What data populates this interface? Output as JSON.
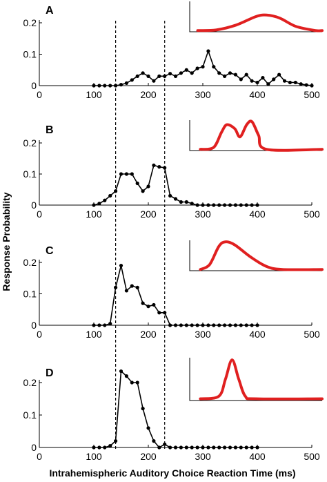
{
  "figure": {
    "ylabel": "Response Probability",
    "xlabel": "Intrahemispheric Auditory Choice Reaction Time (ms)",
    "guide_lines_x": [
      140,
      230
    ]
  },
  "colors": {
    "data": "#000000",
    "inset_curve": "#e02020",
    "axis": "#000000"
  },
  "chart_data": [
    {
      "type": "line",
      "panel": "A",
      "xlim": [
        0,
        500
      ],
      "ylim": [
        0,
        0.2
      ],
      "x_ticks": [
        "0",
        "100",
        "200",
        "300",
        "400",
        "500"
      ],
      "y_ticks": [
        "0",
        "0.1",
        "0.2"
      ],
      "series": [
        {
          "x": [
            100,
            110,
            120,
            130,
            140,
            150,
            160,
            170,
            180,
            190,
            200,
            210,
            220,
            230,
            240,
            250,
            260,
            270,
            280,
            290,
            300,
            310,
            320,
            330,
            340,
            350,
            360,
            370,
            380,
            390,
            400,
            410,
            420,
            430,
            440,
            450,
            460,
            470,
            480,
            490,
            500
          ],
          "values": [
            0,
            0,
            0,
            0,
            0,
            0.003,
            0.008,
            0.018,
            0.03,
            0.04,
            0.03,
            0.015,
            0.03,
            0.03,
            0.038,
            0.03,
            0.04,
            0.05,
            0.04,
            0.055,
            0.06,
            0.11,
            0.06,
            0.04,
            0.03,
            0.04,
            0.035,
            0.02,
            0.035,
            0.015,
            0.01,
            0.025,
            0.005,
            0.02,
            0.035,
            0.015,
            0.01,
            0.01,
            0.005,
            0.002,
            0
          ]
        }
      ],
      "inset": {
        "shape": "single broad peak"
      }
    },
    {
      "type": "line",
      "panel": "B",
      "xlim": [
        0,
        500
      ],
      "ylim": [
        0,
        0.2
      ],
      "x_ticks": [
        "0",
        "100",
        "200",
        "300",
        "400",
        "500"
      ],
      "y_ticks": [
        "0",
        "0.1",
        "0.2"
      ],
      "series": [
        {
          "x": [
            100,
            110,
            120,
            130,
            140,
            150,
            160,
            170,
            180,
            190,
            200,
            210,
            220,
            230,
            240,
            250,
            260,
            270,
            280,
            290,
            300,
            310,
            320,
            330,
            340,
            350,
            360,
            370,
            380,
            390,
            400
          ],
          "values": [
            0,
            0.005,
            0.015,
            0.03,
            0.045,
            0.1,
            0.1,
            0.1,
            0.07,
            0.045,
            0.06,
            0.128,
            0.123,
            0.12,
            0.03,
            0.02,
            0.01,
            0.01,
            0.005,
            0,
            0,
            0,
            0,
            0,
            0,
            0,
            0,
            0,
            0,
            0,
            0
          ]
        }
      ],
      "inset": {
        "shape": "two peaks"
      }
    },
    {
      "type": "line",
      "panel": "C",
      "xlim": [
        0,
        500
      ],
      "ylim": [
        0,
        0.2
      ],
      "x_ticks": [
        "0",
        "100",
        "200",
        "300",
        "400",
        "500"
      ],
      "y_ticks": [
        "0",
        "0.1",
        "0.2"
      ],
      "series": [
        {
          "x": [
            100,
            110,
            120,
            130,
            140,
            150,
            160,
            170,
            180,
            190,
            200,
            210,
            220,
            230,
            240,
            250,
            260,
            270,
            280,
            290,
            300,
            310,
            320,
            330,
            340,
            350,
            360,
            370,
            380,
            390,
            400
          ],
          "values": [
            0,
            0,
            0,
            0.005,
            0.12,
            0.19,
            0.11,
            0.125,
            0.12,
            0.07,
            0.06,
            0.065,
            0.04,
            0.04,
            0,
            0,
            0,
            0,
            0,
            0,
            0,
            0,
            0,
            0,
            0,
            0,
            0,
            0,
            0,
            0,
            0
          ]
        }
      ],
      "inset": {
        "shape": "skewed peak"
      }
    },
    {
      "type": "line",
      "panel": "D",
      "xlim": [
        0,
        500
      ],
      "ylim": [
        0,
        0.2
      ],
      "x_ticks": [
        "0",
        "100",
        "200",
        "300",
        "400",
        "500"
      ],
      "y_ticks": [
        "0",
        "0.1",
        "0.2"
      ],
      "series": [
        {
          "x": [
            100,
            110,
            120,
            130,
            140,
            150,
            160,
            170,
            180,
            190,
            200,
            210,
            220,
            230,
            240,
            250,
            260,
            270,
            280,
            290,
            300,
            310,
            320,
            330,
            340,
            350,
            360,
            370,
            380,
            390,
            400
          ],
          "values": [
            0,
            0,
            0,
            0.005,
            0.02,
            0.235,
            0.22,
            0.2,
            0.2,
            0.12,
            0.06,
            0.02,
            0,
            0.01,
            0,
            0,
            0,
            0,
            0,
            0,
            0,
            0,
            0,
            0,
            0,
            0,
            0,
            0,
            0,
            0,
            0
          ]
        }
      ],
      "inset": {
        "shape": "narrow peak"
      }
    }
  ]
}
